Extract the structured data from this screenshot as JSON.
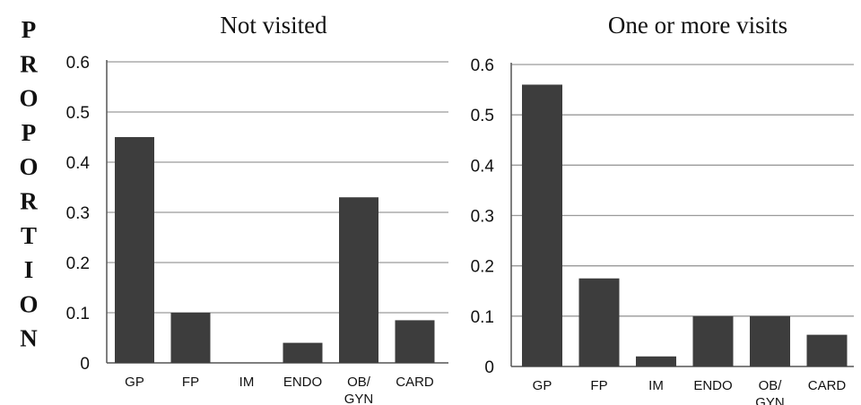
{
  "y_axis_label": "PROPORTION",
  "chart_data": [
    {
      "type": "bar",
      "title": "Not visited",
      "xlabel": "",
      "ylabel": "PROPORTION",
      "ylim": [
        0,
        0.6
      ],
      "yticks": [
        "0",
        "0.1",
        "0.2",
        "0.3",
        "0.4",
        "0.5",
        "0.6"
      ],
      "grid": true,
      "categories": [
        [
          "GP"
        ],
        [
          "FP"
        ],
        [
          "IM"
        ],
        [
          "ENDO"
        ],
        [
          "OB/",
          "GYN"
        ],
        [
          "CARD"
        ]
      ],
      "values": [
        0.45,
        0.1,
        0.0,
        0.04,
        0.33,
        0.085
      ],
      "bar_color": "#3d3d3d"
    },
    {
      "type": "bar",
      "title": "One or more visits",
      "xlabel": "",
      "ylabel": "",
      "ylim": [
        0,
        0.6
      ],
      "yticks": [
        "0",
        "0.1",
        "0.2",
        "0.3",
        "0.4",
        "0.5",
        "0.6"
      ],
      "grid": true,
      "categories": [
        [
          "GP"
        ],
        [
          "FP"
        ],
        [
          "IM"
        ],
        [
          "ENDO"
        ],
        [
          "OB/",
          "GYN"
        ],
        [
          "CARD"
        ]
      ],
      "values": [
        0.56,
        0.175,
        0.02,
        0.1,
        0.1,
        0.063
      ],
      "bar_color": "#3d3d3d"
    }
  ]
}
